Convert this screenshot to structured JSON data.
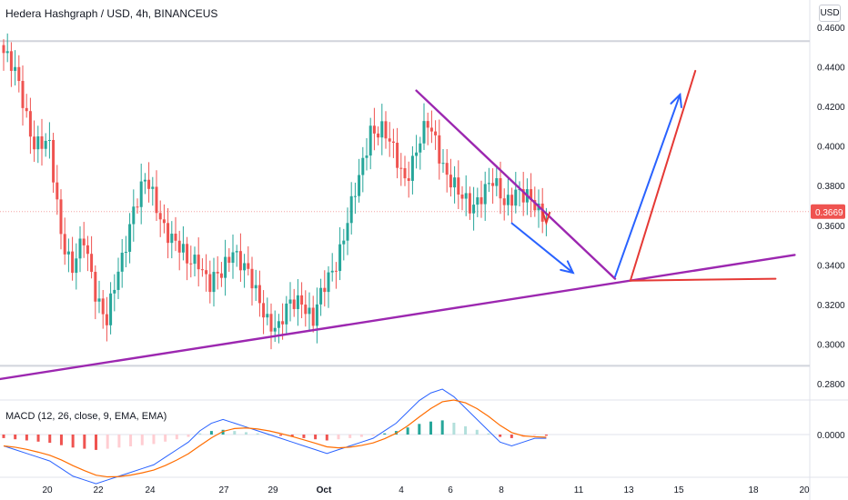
{
  "header": {
    "title": "Hedera Hashgraph / USD, 4h, BINANCEUS",
    "currency_button": "USD"
  },
  "macd_panel": {
    "title": "MACD (12, 26, close, 9, EMA, EMA)",
    "zero_label": "0.0000"
  },
  "colors": {
    "up": "#26a69a",
    "down": "#ef5350",
    "trendline_purple": "#9c27b0",
    "arrow_blue": "#2962ff",
    "arrow_red": "#e53935",
    "macd_line": "#2962ff",
    "signal_line": "#ff6d00"
  },
  "chart_data": {
    "type": "candlestick",
    "symbol": "Hedera Hashgraph / USD",
    "interval": "4h",
    "exchange": "BINANCEUS",
    "y_axis": {
      "ticks": [
        "0.4600",
        "0.4400",
        "0.4200",
        "0.4000",
        "0.3800",
        "0.3600",
        "0.3400",
        "0.3200",
        "0.3000",
        "0.2800"
      ],
      "range": [
        0.275,
        0.465
      ]
    },
    "x_axis": {
      "tick_labels": [
        "20",
        "22",
        "24",
        "27",
        "29",
        "Oct",
        "4",
        "6",
        "8",
        "11",
        "13",
        "15",
        "18",
        "20"
      ]
    },
    "last_price": {
      "label": "0.3669",
      "value": 0.3669
    },
    "horizontal_levels": [
      0.453,
      0.289
    ],
    "approx_close_path": [
      [
        0,
        0.447
      ],
      [
        4,
        0.431
      ],
      [
        8,
        0.402
      ],
      [
        12,
        0.398
      ],
      [
        15,
        0.358
      ],
      [
        18,
        0.338
      ],
      [
        21,
        0.351
      ],
      [
        24,
        0.328
      ],
      [
        27,
        0.312
      ],
      [
        31,
        0.342
      ],
      [
        34,
        0.371
      ],
      [
        37,
        0.382
      ],
      [
        41,
        0.364
      ],
      [
        44,
        0.355
      ],
      [
        48,
        0.34
      ],
      [
        51,
        0.344
      ],
      [
        54,
        0.33
      ],
      [
        57,
        0.334
      ],
      [
        60,
        0.35
      ],
      [
        63,
        0.339
      ],
      [
        66,
        0.324
      ],
      [
        69,
        0.314
      ],
      [
        72,
        0.308
      ],
      [
        75,
        0.319
      ],
      [
        78,
        0.324
      ],
      [
        81,
        0.312
      ],
      [
        84,
        0.328
      ],
      [
        87,
        0.343
      ],
      [
        90,
        0.362
      ],
      [
        93,
        0.382
      ],
      [
        96,
        0.41
      ],
      [
        99,
        0.408
      ],
      [
        102,
        0.396
      ],
      [
        105,
        0.385
      ],
      [
        108,
        0.397
      ],
      [
        111,
        0.41
      ],
      [
        113,
        0.404
      ],
      [
        116,
        0.386
      ],
      [
        119,
        0.374
      ],
      [
        122,
        0.371
      ],
      [
        125,
        0.376
      ],
      [
        128,
        0.38
      ],
      [
        131,
        0.373
      ],
      [
        134,
        0.378
      ],
      [
        136,
        0.373
      ],
      [
        139,
        0.37
      ],
      [
        142,
        0.366
      ]
    ],
    "macd_histogram_approx": [
      -0.003,
      -0.004,
      -0.005,
      -0.006,
      -0.007,
      -0.009,
      -0.011,
      -0.012,
      -0.013,
      -0.012,
      -0.011,
      -0.01,
      -0.009,
      -0.008,
      -0.006,
      -0.004,
      -0.002,
      0.001,
      0.003,
      0.004,
      0.003,
      0.002,
      0.001,
      0.0,
      -0.001,
      -0.002,
      -0.003,
      -0.004,
      -0.005,
      -0.004,
      -0.003,
      -0.002,
      -0.001,
      0.001,
      0.003,
      0.006,
      0.009,
      0.011,
      0.012,
      0.01,
      0.007,
      0.004,
      0.001,
      -0.002,
      -0.003,
      -0.002,
      -0.001,
      -0.001
    ],
    "drawings": [
      {
        "type": "support-trendline",
        "from": [
          -2,
          0.282
        ],
        "to": [
          207,
          0.345
        ],
        "color": "#9c27b0"
      },
      {
        "type": "resistance-trendline",
        "from": [
          108,
          0.428
        ],
        "to": [
          160,
          0.333
        ],
        "color": "#9c27b0"
      },
      {
        "type": "arrow",
        "from": [
          133,
          0.361
        ],
        "to": [
          149,
          0.336
        ],
        "color": "#2962ff"
      },
      {
        "type": "arrow",
        "from": [
          160,
          0.334
        ],
        "to": [
          177,
          0.426
        ],
        "color": "#2962ff"
      },
      {
        "type": "line",
        "from": [
          164,
          0.332
        ],
        "to": [
          181,
          0.438
        ],
        "color": "#e53935"
      },
      {
        "type": "line",
        "from": [
          164,
          0.332
        ],
        "to": [
          202,
          0.333
        ],
        "color": "#e53935"
      },
      {
        "type": "arrowhead",
        "at": [
          142,
          0.364
        ],
        "color": "#e53935"
      }
    ]
  }
}
